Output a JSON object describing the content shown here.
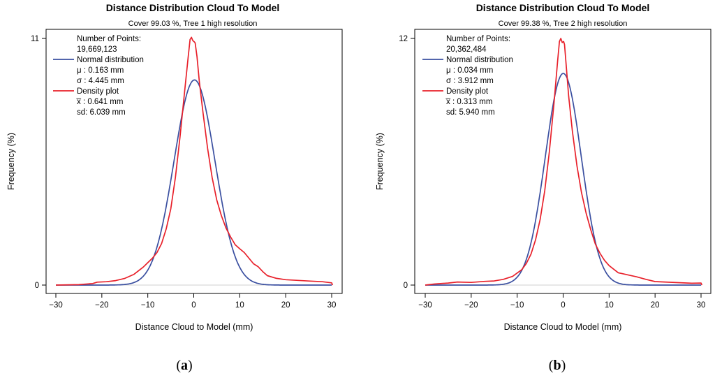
{
  "chart_data": [
    {
      "type": "line",
      "panel_label": "a",
      "title": "Distance Distribution Cloud To Model",
      "subtitle": "Cover 99.03 %, Tree 1 high resolution",
      "xlabel": "Distance Cloud to Model (mm)",
      "ylabel": "Frequency (%)",
      "xlim": [
        -30,
        30
      ],
      "ylim": [
        0,
        11
      ],
      "xticks": [
        -30,
        -20,
        -10,
        0,
        10,
        20,
        30
      ],
      "xtick_labels": [
        "−30",
        "−20",
        "−10",
        "0",
        "10",
        "20",
        "30"
      ],
      "yticks": [
        0,
        11
      ],
      "ytick_labels": [
        "0",
        "11"
      ],
      "legend": {
        "position": "top-left",
        "points_label": "Number of Points:",
        "points_value": "19,669,123",
        "normal_label": "Normal distribution",
        "normal_mu": "μ    : 0.163 mm",
        "normal_sigma": "σ    : 4.445 mm",
        "density_label": "Density plot",
        "density_mean": "x̅   : 0.641 mm",
        "density_sd": "sd: 6.039 mm"
      },
      "series": [
        {
          "name": "Normal distribution",
          "color": "#3a4fa0",
          "mean": 0.163,
          "sd": 4.445,
          "peak": 9.15
        },
        {
          "name": "Density plot",
          "color": "#e8202a",
          "points": [
            [
              -30,
              0
            ],
            [
              -25,
              0.02
            ],
            [
              -22,
              0.07
            ],
            [
              -21,
              0.13
            ],
            [
              -19,
              0.15
            ],
            [
              -17,
              0.2
            ],
            [
              -15,
              0.3
            ],
            [
              -13,
              0.48
            ],
            [
              -11,
              0.8
            ],
            [
              -10,
              1.0
            ],
            [
              -9,
              1.2
            ],
            [
              -8,
              1.45
            ],
            [
              -7,
              1.85
            ],
            [
              -6,
              2.5
            ],
            [
              -5,
              3.4
            ],
            [
              -4,
              4.8
            ],
            [
              -3,
              6.6
            ],
            [
              -2,
              8.6
            ],
            [
              -1.2,
              10.2
            ],
            [
              -0.8,
              10.95
            ],
            [
              -0.5,
              11.05
            ],
            [
              -0.2,
              10.9
            ],
            [
              0.1,
              10.85
            ],
            [
              0.3,
              10.8
            ],
            [
              0.7,
              10.2
            ],
            [
              1.2,
              9.1
            ],
            [
              2,
              7.7
            ],
            [
              3,
              6.1
            ],
            [
              4,
              4.8
            ],
            [
              5,
              3.8
            ],
            [
              6,
              3.1
            ],
            [
              7,
              2.55
            ],
            [
              8,
              2.15
            ],
            [
              9,
              1.8
            ],
            [
              10,
              1.62
            ],
            [
              11,
              1.45
            ],
            [
              12,
              1.2
            ],
            [
              13,
              0.95
            ],
            [
              14,
              0.82
            ],
            [
              15,
              0.6
            ],
            [
              16,
              0.42
            ],
            [
              18,
              0.3
            ],
            [
              20,
              0.24
            ],
            [
              25,
              0.18
            ],
            [
              28,
              0.15
            ],
            [
              30,
              0.1
            ],
            [
              30.2,
              0.0
            ]
          ]
        }
      ]
    },
    {
      "type": "line",
      "panel_label": "b",
      "title": "Distance Distribution Cloud To Model",
      "subtitle": "Cover 99.38 %, Tree 2 high resolution",
      "xlabel": "Distance Cloud to Model (mm)",
      "ylabel": "Frequency (%)",
      "xlim": [
        -30,
        30
      ],
      "ylim": [
        0,
        12
      ],
      "xticks": [
        -30,
        -20,
        -10,
        0,
        10,
        20,
        30
      ],
      "xtick_labels": [
        "−30",
        "−20",
        "−10",
        "0",
        "10",
        "20",
        "30"
      ],
      "yticks": [
        0,
        12
      ],
      "ytick_labels": [
        "0",
        "12"
      ],
      "legend": {
        "position": "top-left",
        "points_label": "Number of Points:",
        "points_value": "20,362,484",
        "normal_label": "Normal distribution",
        "normal_mu": "μ    : 0.034 mm",
        "normal_sigma": "σ    : 3.912 mm",
        "density_label": "Density plot",
        "density_mean": "x̅   : 0.313 mm",
        "density_sd": "sd: 5.940 mm"
      },
      "series": [
        {
          "name": "Normal distribution",
          "color": "#3a4fa0",
          "mean": 0.034,
          "sd": 3.912,
          "peak": 10.3
        },
        {
          "name": "Density plot",
          "color": "#e8202a",
          "points": [
            [
              -30,
              0
            ],
            [
              -28,
              0.05
            ],
            [
              -25,
              0.1
            ],
            [
              -23,
              0.15
            ],
            [
              -20,
              0.13
            ],
            [
              -17,
              0.18
            ],
            [
              -15,
              0.2
            ],
            [
              -13,
              0.28
            ],
            [
              -11,
              0.42
            ],
            [
              -9,
              0.75
            ],
            [
              -8,
              1.05
            ],
            [
              -7,
              1.5
            ],
            [
              -6,
              2.2
            ],
            [
              -5,
              3.2
            ],
            [
              -4,
              4.6
            ],
            [
              -3,
              6.5
            ],
            [
              -2,
              8.8
            ],
            [
              -1.2,
              10.9
            ],
            [
              -0.8,
              11.85
            ],
            [
              -0.5,
              12.0
            ],
            [
              -0.2,
              11.8
            ],
            [
              0.1,
              11.85
            ],
            [
              0.3,
              11.7
            ],
            [
              0.7,
              10.6
            ],
            [
              1.2,
              9.2
            ],
            [
              2,
              7.5
            ],
            [
              3,
              5.8
            ],
            [
              4,
              4.5
            ],
            [
              5,
              3.5
            ],
            [
              6,
              2.7
            ],
            [
              7,
              2.0
            ],
            [
              8,
              1.55
            ],
            [
              9,
              1.2
            ],
            [
              10,
              0.95
            ],
            [
              12,
              0.6
            ],
            [
              14,
              0.5
            ],
            [
              16,
              0.4
            ],
            [
              18,
              0.28
            ],
            [
              20,
              0.17
            ],
            [
              25,
              0.12
            ],
            [
              28,
              0.09
            ],
            [
              30,
              0.1
            ],
            [
              30.2,
              0.0
            ]
          ]
        }
      ]
    }
  ]
}
